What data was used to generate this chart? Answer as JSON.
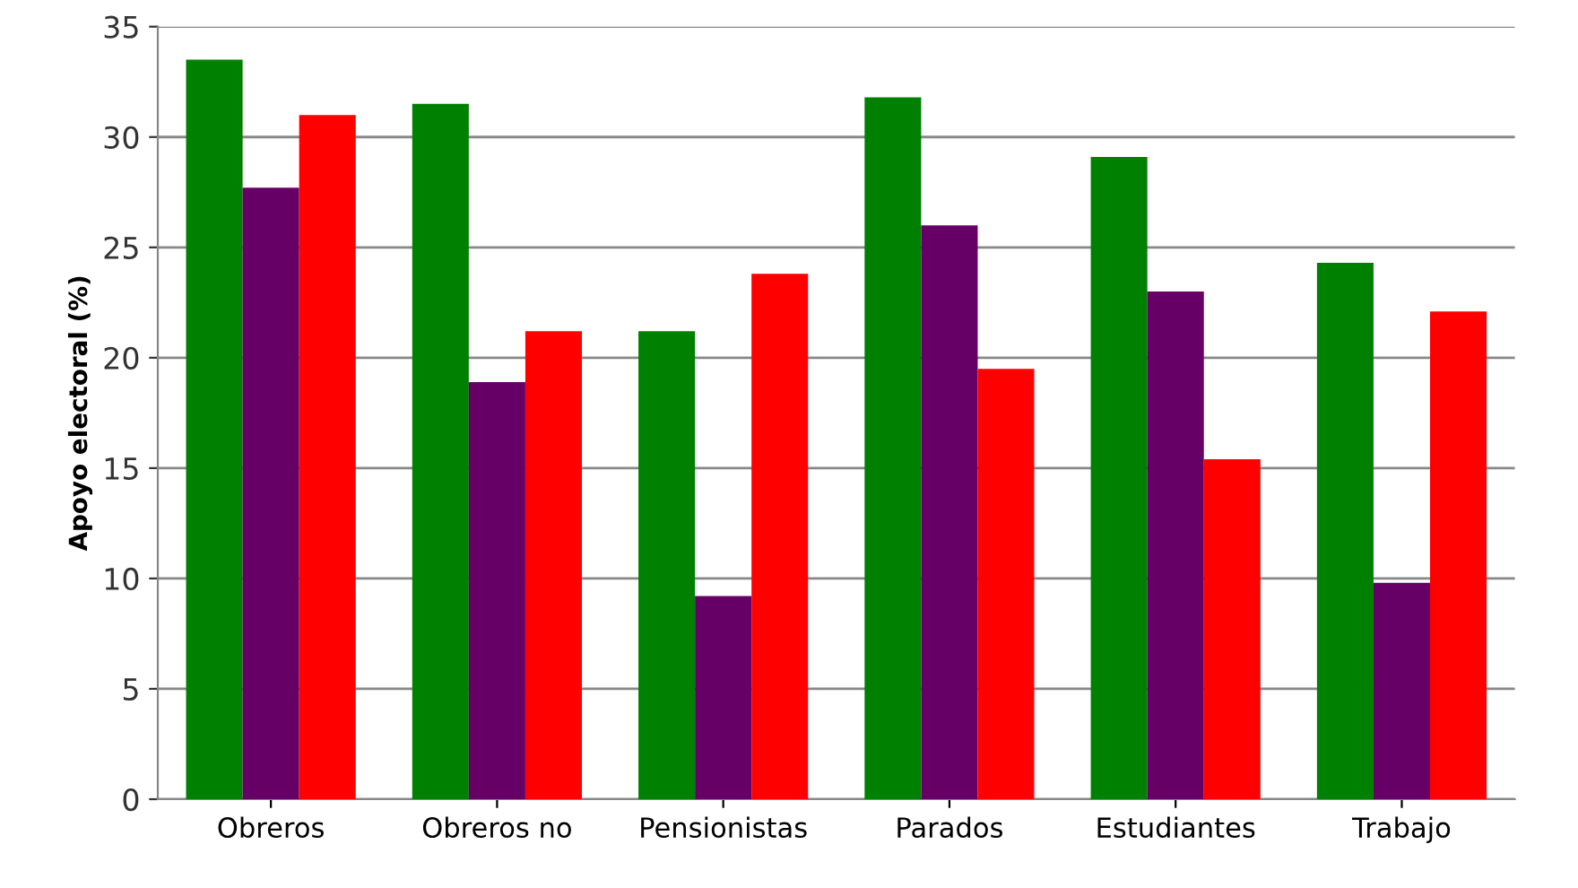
{
  "chart_data": {
    "type": "bar",
    "ylabel": "Apoyo electoral (%)",
    "categories": [
      "Obreros",
      "Obreros no",
      "Pensionistas",
      "Parados",
      "Estudiantes",
      "Trabajo"
    ],
    "series": [
      {
        "color": "#008000",
        "values": [
          33.5,
          31.5,
          21.2,
          31.8,
          29.1,
          24.3
        ]
      },
      {
        "color": "#660066",
        "values": [
          27.7,
          18.9,
          9.2,
          26.0,
          23.0,
          9.8
        ]
      },
      {
        "color": "#ff0000",
        "values": [
          31.0,
          21.2,
          23.8,
          19.5,
          15.4,
          22.1
        ]
      }
    ],
    "ylim": [
      0,
      35
    ],
    "yticks": [
      0,
      5,
      10,
      15,
      20,
      25,
      30,
      35
    ],
    "grid": "y",
    "legend": false
  }
}
